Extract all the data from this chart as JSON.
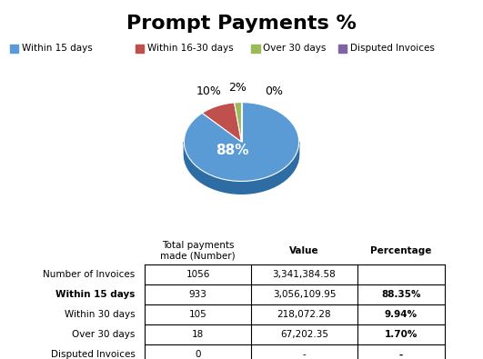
{
  "title": "Prompt Payments %",
  "pie_values": [
    88,
    10,
    2,
    0
  ],
  "pie_labels": [
    "88%",
    "10%",
    "2%",
    "0%"
  ],
  "pie_colors": [
    "#5B9BD5",
    "#C0504D",
    "#9BBB59",
    "#8064A2"
  ],
  "legend_labels": [
    "Within 15 days",
    "Within 16-30 days",
    "Over 30 days",
    "Disputed Invoices"
  ],
  "table_row_labels": [
    "Number of Invoices",
    "Within 15 days",
    "Within 30 days",
    "Over 30 days",
    "Disputed Invoices"
  ],
  "table_col_labels": [
    "Total payments\nmade (Number)",
    "Value",
    "Percentage"
  ],
  "table_data": [
    [
      "1056",
      "3,341,384.58",
      ""
    ],
    [
      "933",
      "3,056,109.95",
      "88.35%"
    ],
    [
      "105",
      "218,072.28",
      "9.94%"
    ],
    [
      "18",
      "67,202.35",
      "1.70%"
    ],
    [
      "0",
      "-",
      "-"
    ]
  ],
  "background_color": "#ffffff"
}
